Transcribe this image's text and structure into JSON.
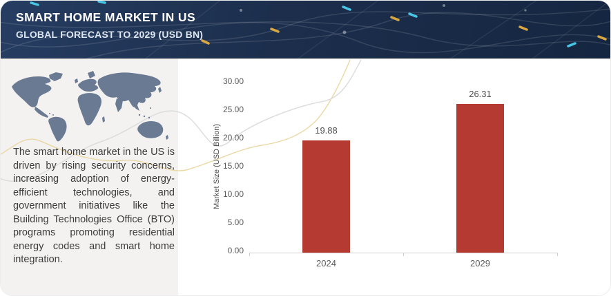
{
  "header": {
    "title": "SMART HOME MARKET IN US",
    "subtitle": "GLOBAL FORECAST TO 2029 (USD BN)"
  },
  "sidebar": {
    "map_icon": "world-map",
    "description": "The smart home market in the US is driven by rising security concerns, increasing adoption of energy-efficient technologies, and government initiatives like the Building Technologies Office (BTO) programs promoting residential energy codes and smart home integration."
  },
  "chart_data": {
    "type": "bar",
    "categories": [
      "2024",
      "2029"
    ],
    "values": [
      19.88,
      26.31
    ],
    "value_labels": [
      "19.88",
      "26.31"
    ],
    "title": "",
    "xlabel": "",
    "ylabel": "Market Size (USD Billion)",
    "ylim": [
      0,
      30
    ],
    "ytick_step": 5,
    "ytick_labels": [
      "0.00",
      "5.00",
      "10.00",
      "15.00",
      "20.00",
      "25.00",
      "30.00"
    ],
    "grid": false,
    "legend": "none",
    "bar_color": "#b53a31"
  },
  "colors": {
    "header_bg": "#1c2f4e",
    "panel_bg": "#f3f2f1",
    "map_fill": "#6b7a93",
    "bar": "#b53a31",
    "axis_line": "#cfcfcf",
    "tick_text": "#595959",
    "accent_gold": "#e9d6a0",
    "accent_gray": "#d9d9d9",
    "glow_cyan": "#49c7e6",
    "glow_yellow": "#d9a840"
  }
}
